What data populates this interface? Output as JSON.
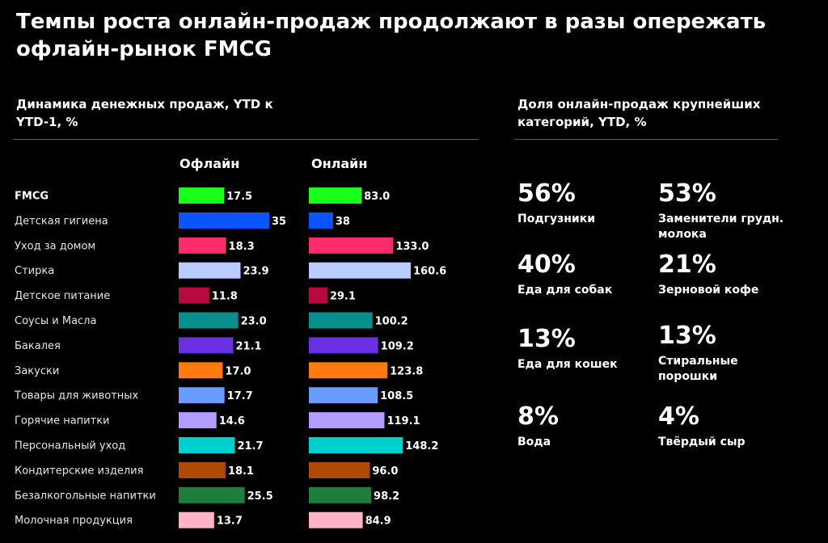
{
  "title": "Темпы роста онлайн-продаж продолжают в разы опережать офлайн-рынок FMCG",
  "left_panel": {
    "heading": "Динамика денежных продаж, YTD к YTD-1, %"
  },
  "right_panel": {
    "heading": "Доля онлайн-продаж крупнейших категорий, YTD, %",
    "items": [
      {
        "value": "56%",
        "label": "Подгузники"
      },
      {
        "value": "53%",
        "label": "Заменители грудн. молока"
      },
      {
        "value": "40%",
        "label": "Еда для собак"
      },
      {
        "value": "21%",
        "label": "Зерновой кофе"
      },
      {
        "value": "13%",
        "label": "Еда для кошек"
      },
      {
        "value": "13%",
        "label": "Стиральные порошки"
      },
      {
        "value": "8%",
        "label": "Вода"
      },
      {
        "value": "4%",
        "label": "Твёрдый сыр"
      }
    ]
  },
  "chart_data": {
    "type": "bar",
    "orientation": "horizontal",
    "title": "Динамика денежных продаж, YTD к YTD-1, %",
    "categories": [
      "FMCG",
      "Детская гигиена",
      "Уход за домом",
      "Стирка",
      "Детское питание",
      "Соусы и Масла",
      "Бакалея",
      "Закуски",
      "Товары для животных",
      "Горячие напитки",
      "Персональный уход",
      "Кондитерские изделия",
      "Безалкогольные напитки",
      "Молочная продукция"
    ],
    "colors": [
      "#19ff19",
      "#0a55ff",
      "#ff2b6b",
      "#b8ccff",
      "#b80a40",
      "#0a8f8f",
      "#6a2fe0",
      "#ff7a10",
      "#6a9cff",
      "#b39cff",
      "#00d0d0",
      "#b04a06",
      "#1b7f3b",
      "#ffb4c8"
    ],
    "series": [
      {
        "name": "Офлайн",
        "values": [
          17.5,
          35,
          18.3,
          23.9,
          11.8,
          23.0,
          21.1,
          17.0,
          17.7,
          14.6,
          21.7,
          18.1,
          25.5,
          13.7
        ],
        "labels": [
          "17.5",
          "35",
          "18.3",
          "23.9",
          "11.8",
          "23.0",
          "21.1",
          "17.0",
          "17.7",
          "14.6",
          "21.7",
          "18.1",
          "25.5",
          "13.7"
        ],
        "scale_max": 35
      },
      {
        "name": "Онлайн",
        "values": [
          83.0,
          38,
          133.0,
          160.6,
          29.1,
          100.2,
          109.2,
          123.8,
          108.5,
          119.1,
          148.2,
          96.0,
          98.2,
          84.9
        ],
        "labels": [
          "83.0",
          "38",
          "133.0",
          "160.6",
          "29.1",
          "100.2",
          "109.2",
          "123.8",
          "108.5",
          "119.1",
          "148.2",
          "96.0",
          "98.2",
          "84.9"
        ],
        "scale_max": 160.6
      }
    ]
  }
}
